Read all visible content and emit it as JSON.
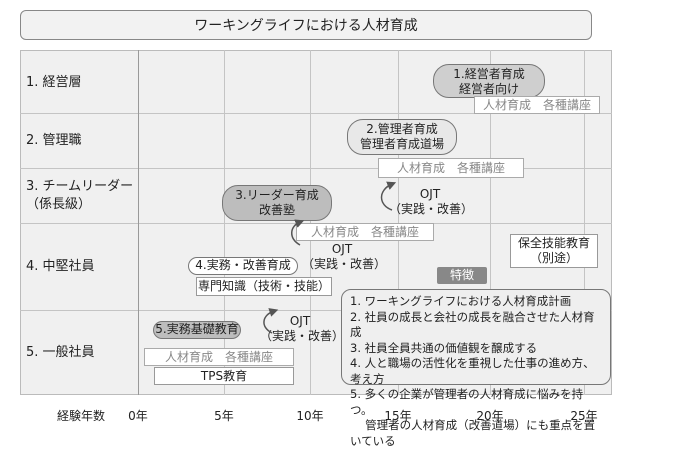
{
  "title": "ワーキングライフにおける人材育成",
  "rows": [
    "1. 経営層",
    "2. 管理職",
    "3. チームリーダー\n（係長級）",
    "4. 中堅社員",
    "5. 一般社員"
  ],
  "axis": {
    "label": "経験年数",
    "ticks": [
      "0年",
      "5年",
      "10年",
      "15年",
      "20年",
      "25年"
    ]
  },
  "pills": [
    {
      "line1": "1.経営者育成",
      "line2": "経営者向け"
    },
    {
      "line1": "2.管理者育成",
      "line2": "管理者育成道場"
    },
    {
      "line1": "3.リーダー育成",
      "line2": "改善塾"
    },
    {
      "line1": "4.実務・改善育成",
      "line2": ""
    },
    {
      "line1": "5.実務基礎教育",
      "line2": ""
    }
  ],
  "boxes": {
    "kouza1": "人材育成　各種講座",
    "kouza2": "人材育成　各種講座",
    "kouza3": "人材育成　各種講座",
    "kouza5": "人材育成　各種講座",
    "senmon": "専門知識（技術・技能）",
    "tps": "TPS教育",
    "hozen_line1": "保全技能教育",
    "hozen_line2": "（別途）"
  },
  "ojt": {
    "line1": "OJT",
    "line2": "（実践・改善）"
  },
  "features": {
    "label": "特徴",
    "items": [
      "1. ワーキングライフにおける人材育成計画",
      "2. 社員の成長と会社の成長を融合させた人材育成",
      "3. 社員全員共通の価値観を醸成する",
      "4. 人と職場の活性化を重視した仕事の進め方、考え方",
      "5. 多くの企業が管理者の人材育成に悩みを持つ。",
      "　 管理者の人材育成（改善道場）にも重点を置いている"
    ]
  }
}
